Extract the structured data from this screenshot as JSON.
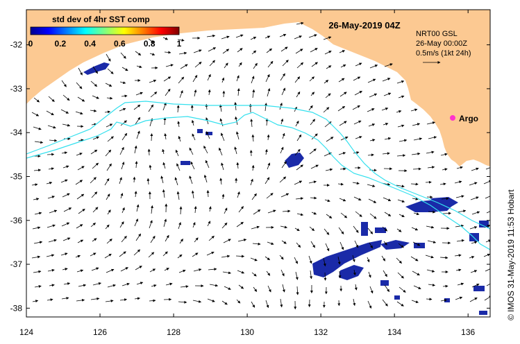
{
  "title": "26-May-2019 04Z",
  "colorbar": {
    "title": "std dev of 4hr SST comp",
    "ticks": [
      "0",
      "0.2",
      "0.4",
      "0.6",
      "0.8",
      "1"
    ]
  },
  "legend": {
    "line1": "NRT00 GSL",
    "line2": "26-May 00:00Z",
    "line3": "0.5m/s (1kt 24h)"
  },
  "argo": {
    "label": "Argo",
    "lon": 135.5,
    "lat": -33.6,
    "color": "#ff33cc"
  },
  "axes": {
    "lon_range": [
      124,
      136.6
    ],
    "lat_range": [
      -38.2,
      -31.2
    ],
    "x_ticks": [
      "124",
      "126",
      "128",
      "130",
      "132",
      "134",
      "136"
    ],
    "y_ticks": [
      "-32",
      "-33",
      "-34",
      "-35",
      "-36",
      "-37",
      "-38"
    ]
  },
  "credit": "© IMOS 31-May-2019 11:53 Hobart",
  "colors": {
    "land": "#fcc992",
    "contour": "#33e0ee",
    "sst": "#1a2aa8",
    "arrows": "#000000"
  }
}
